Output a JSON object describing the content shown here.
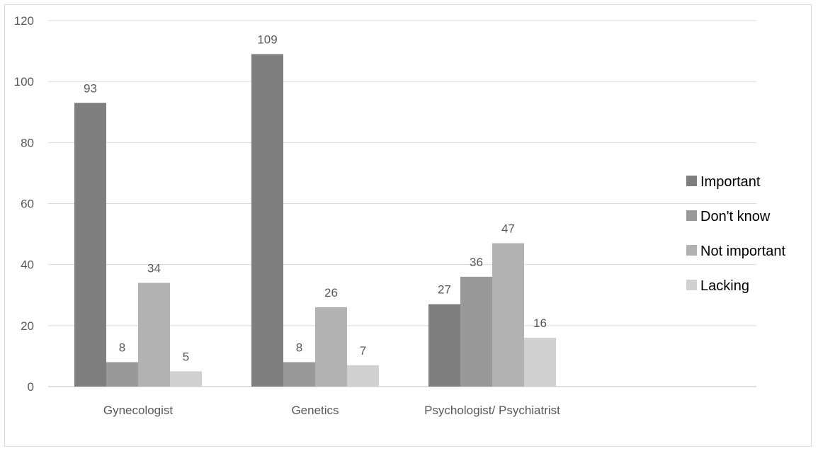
{
  "chart_data": {
    "type": "bar",
    "title": "",
    "xlabel": "",
    "ylabel": "",
    "categories": [
      "Gynecologist",
      "Genetics",
      "Psychologist/ Psychiatrist"
    ],
    "series": [
      {
        "name": "Important",
        "values": [
          93,
          109,
          27
        ],
        "color": "#7f7f7f"
      },
      {
        "name": "Don't know",
        "values": [
          8,
          8,
          36
        ],
        "color": "#999999"
      },
      {
        "name": "Not important",
        "values": [
          34,
          26,
          47
        ],
        "color": "#b2b2b2"
      },
      {
        "name": "Lacking",
        "values": [
          5,
          7,
          16
        ],
        "color": "#d0d0d0"
      }
    ],
    "ylim": [
      0,
      120
    ],
    "yticks": [
      "0",
      "20",
      "40",
      "60",
      "80",
      "100",
      "120"
    ],
    "grid": true,
    "legend_position": "right",
    "data_labels": true
  }
}
